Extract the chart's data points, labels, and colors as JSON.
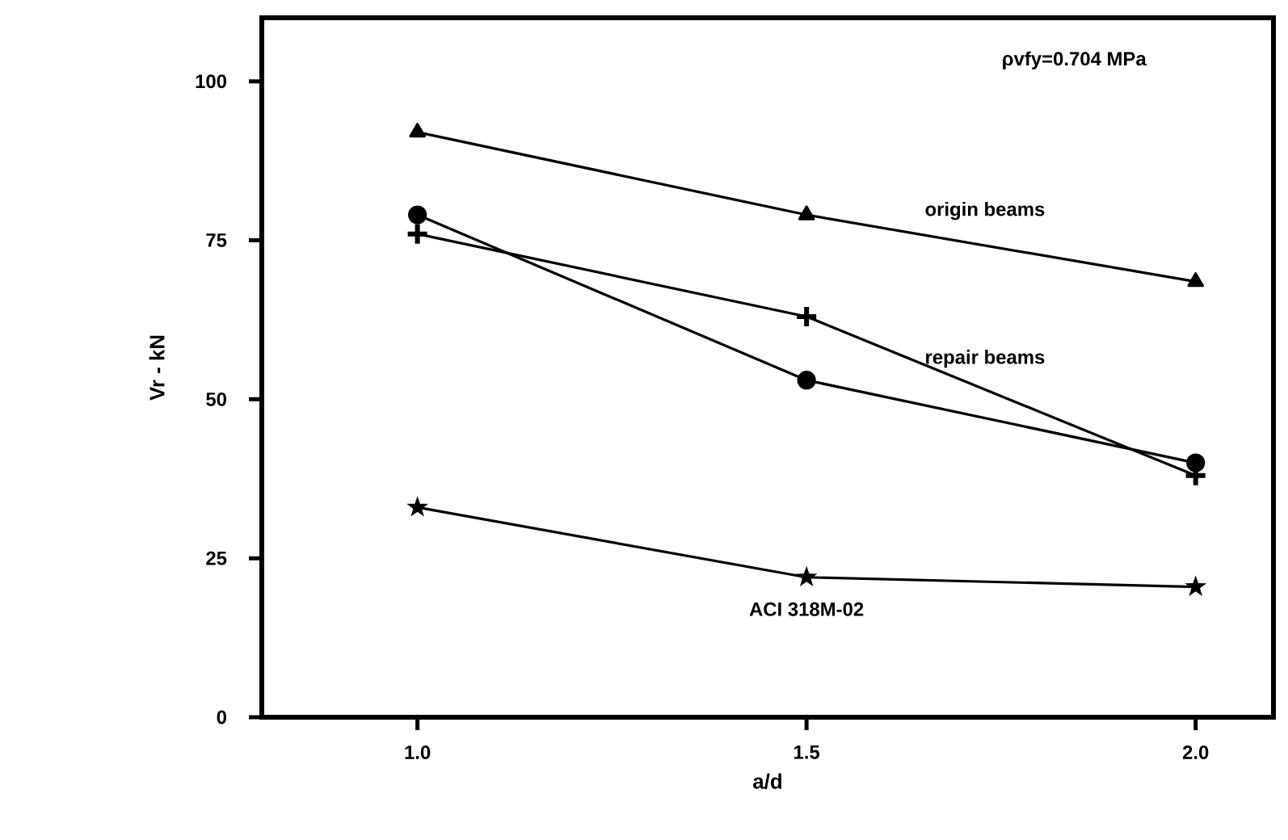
{
  "chart_data": {
    "type": "line",
    "xlabel": "a/d",
    "ylabel": "Vr - kN",
    "x": [
      1.0,
      1.5,
      2.0
    ],
    "xlim": [
      0.8,
      2.1
    ],
    "ylim": [
      0,
      110
    ],
    "xticks": [
      {
        "value": 1.0,
        "label": "1.0"
      },
      {
        "value": 1.5,
        "label": "1.5"
      },
      {
        "value": 2.0,
        "label": "2.0"
      }
    ],
    "yticks": [
      0,
      25,
      50,
      75,
      100
    ],
    "grid": false,
    "line_style": "solid",
    "annotations": [
      "ρvfy=0.704 MPa"
    ],
    "series": [
      {
        "name": "origin beams",
        "color": "#000000",
        "marker": "triangle",
        "values": [
          92,
          79,
          68.5
        ]
      },
      {
        "color": "#000000",
        "marker": "circle",
        "values": [
          79,
          53,
          40
        ]
      },
      {
        "name": "repair beams",
        "color": "#000000",
        "marker": "cross",
        "values": [
          76,
          63,
          38
        ]
      },
      {
        "name": "ACI 318M-02",
        "color": "#000000",
        "marker": "star",
        "values": [
          33,
          22,
          20.5
        ]
      }
    ]
  }
}
